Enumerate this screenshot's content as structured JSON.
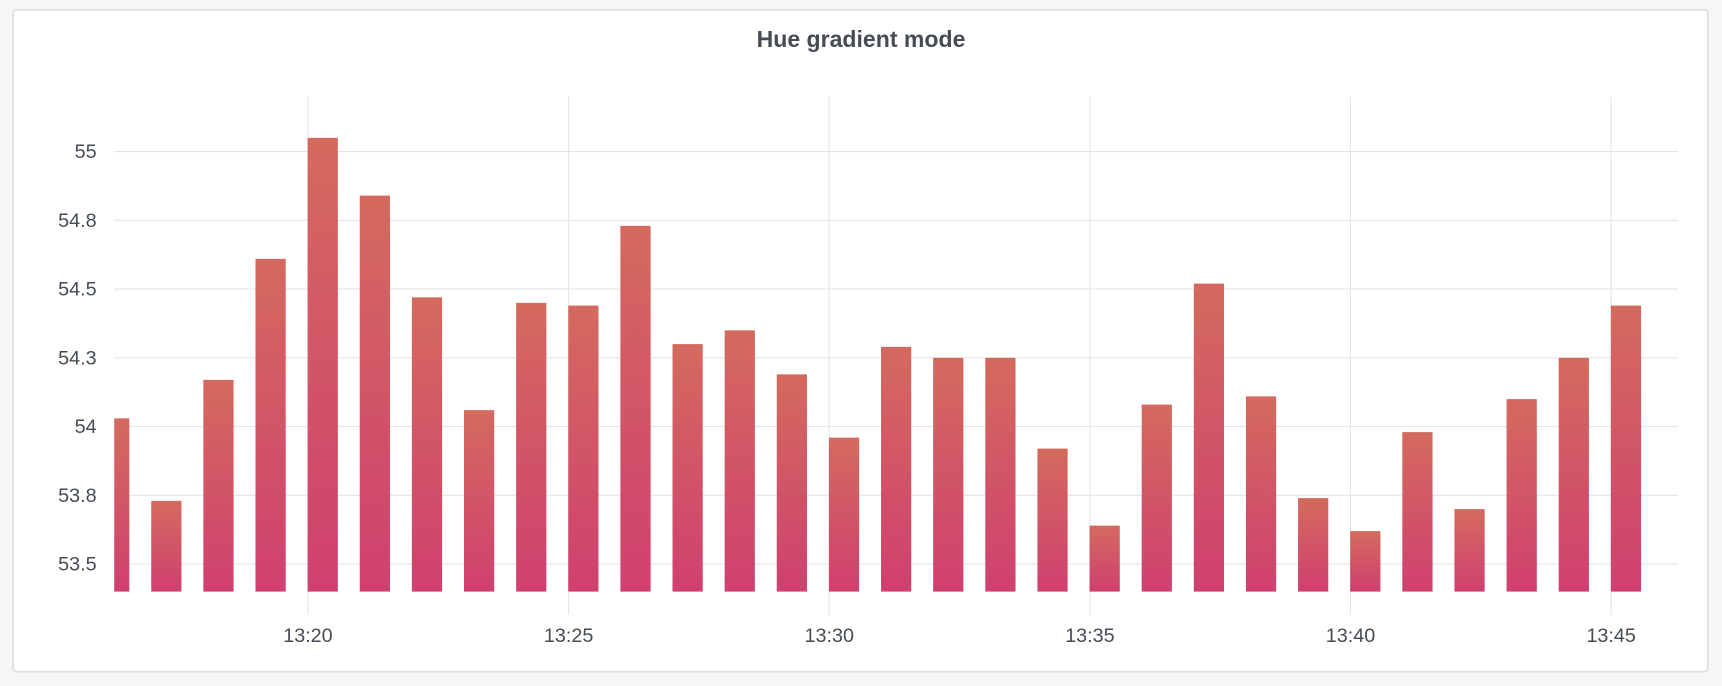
{
  "chart_data": {
    "type": "bar",
    "title": "Hue gradient mode",
    "xlabel": "",
    "ylabel": "",
    "grid": true,
    "ylim": [
      53.4,
      55.2
    ],
    "y_ticks": [
      53.5,
      53.75,
      54,
      54.25,
      54.5,
      54.75,
      55
    ],
    "y_tick_labels": [
      "53.5",
      "53.8",
      "54",
      "54.3",
      "54.5",
      "54.8",
      "55"
    ],
    "xlim": [
      "13:16:17",
      "13:46:17"
    ],
    "x_ticks": [
      "13:20",
      "13:25",
      "13:30",
      "13:35",
      "13:40",
      "13:45"
    ],
    "x": [
      "13:16:17",
      "13:17:17",
      "13:18:17",
      "13:19:17",
      "13:20:17",
      "13:21:17",
      "13:22:17",
      "13:23:17",
      "13:24:17",
      "13:25:17",
      "13:26:17",
      "13:27:17",
      "13:28:17",
      "13:29:17",
      "13:30:17",
      "13:31:17",
      "13:32:17",
      "13:33:17",
      "13:34:17",
      "13:35:17",
      "13:36:17",
      "13:37:17",
      "13:38:17",
      "13:39:17",
      "13:40:17",
      "13:41:17",
      "13:42:17",
      "13:43:17",
      "13:44:17",
      "13:45:17"
    ],
    "values": [
      54.03,
      53.73,
      54.17,
      54.61,
      55.05,
      54.84,
      54.47,
      54.06,
      54.45,
      54.44,
      54.73,
      54.3,
      54.35,
      54.19,
      53.96,
      54.29,
      54.25,
      54.25,
      53.92,
      53.64,
      54.08,
      54.52,
      54.11,
      53.74,
      53.62,
      53.98,
      53.7,
      54.1,
      54.25,
      54.44
    ],
    "colors": {
      "gradient_top": "#d46a5e",
      "gradient_bottom": "#cf406f",
      "grid": "#e4e5e8",
      "text": "#464c54"
    }
  }
}
